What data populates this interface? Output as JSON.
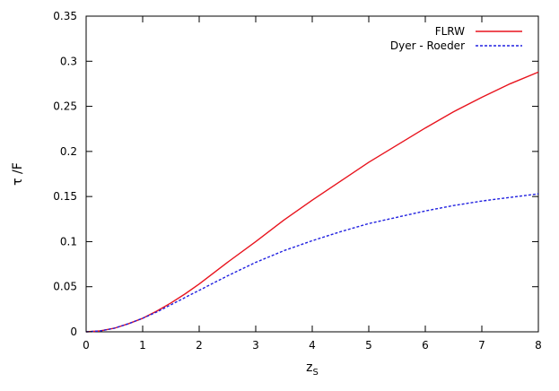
{
  "chart_data": {
    "type": "line",
    "title": "",
    "xlabel": "z",
    "xlabel_sub": "S",
    "ylabel": "τ /F",
    "xlim": [
      0,
      8
    ],
    "ylim": [
      0,
      0.35
    ],
    "xticks": [
      0,
      1,
      2,
      3,
      4,
      5,
      6,
      7,
      8
    ],
    "xtick_labels": [
      "0",
      "1",
      "2",
      "3",
      "4",
      "5",
      "6",
      "7",
      "8"
    ],
    "yticks": [
      0,
      0.05,
      0.1,
      0.15,
      0.2,
      0.25,
      0.3,
      0.35
    ],
    "ytick_labels": [
      "0",
      "0.05",
      "0.1",
      "0.15",
      "0.2",
      "0.25",
      "0.3",
      "0.35"
    ],
    "grid": false,
    "legend_position": "top-right",
    "series": [
      {
        "name": "FLRW",
        "color": "#e8141e",
        "dash": "solid",
        "x": [
          0,
          0.25,
          0.5,
          0.75,
          1,
          1.25,
          1.5,
          1.75,
          2,
          2.5,
          3,
          3.5,
          4,
          4.5,
          5,
          5.5,
          6,
          6.5,
          7,
          7.5,
          8
        ],
        "y": [
          0,
          0.001,
          0.004,
          0.009,
          0.015,
          0.023,
          0.032,
          0.042,
          0.053,
          0.077,
          0.1,
          0.124,
          0.146,
          0.167,
          0.188,
          0.207,
          0.226,
          0.244,
          0.26,
          0.275,
          0.288
        ]
      },
      {
        "name": "Dyer - Roeder",
        "color": "#2020e0",
        "dash": "dashed",
        "x": [
          0,
          0.25,
          0.5,
          0.75,
          1,
          1.25,
          1.5,
          1.75,
          2,
          2.5,
          3,
          3.5,
          4,
          4.5,
          5,
          5.5,
          6,
          6.5,
          7,
          7.5,
          8
        ],
        "y": [
          0,
          0.001,
          0.004,
          0.009,
          0.015,
          0.022,
          0.03,
          0.038,
          0.046,
          0.062,
          0.077,
          0.09,
          0.101,
          0.111,
          0.12,
          0.127,
          0.134,
          0.14,
          0.145,
          0.149,
          0.153
        ]
      }
    ]
  }
}
